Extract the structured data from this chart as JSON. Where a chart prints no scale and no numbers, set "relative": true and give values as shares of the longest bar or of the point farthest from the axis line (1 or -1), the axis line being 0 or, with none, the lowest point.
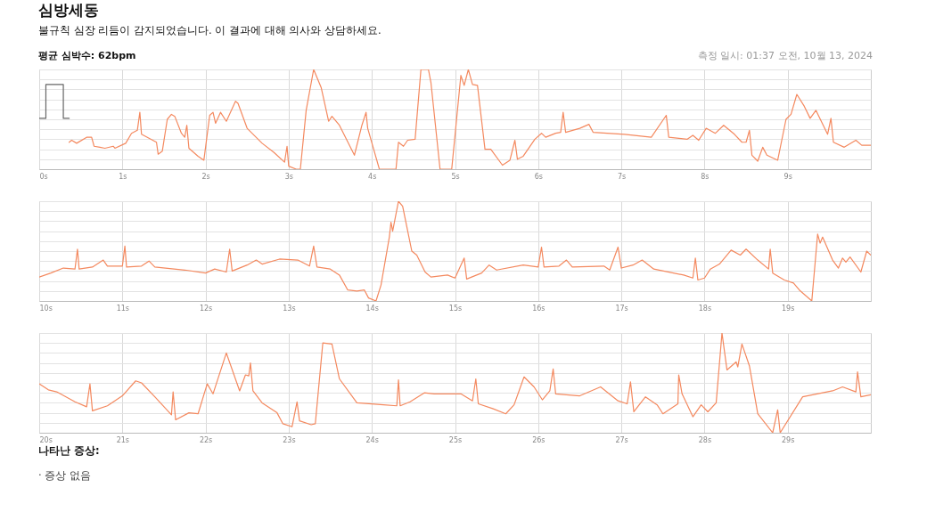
{
  "chart_data": [
    {
      "type": "line",
      "title": "심방세동",
      "subtitle": "불규칙 심장 리듬이 감지되었습니다. 이 결과에 대해 의사와 상담하세요.",
      "annotations": [
        "평균 심박수: 62bpm",
        "측정 일시: 01:37 오전, 10월 13, 2024"
      ],
      "relative": true,
      "grid": true,
      "xlim": [
        0,
        10
      ],
      "xticks": [
        {
          "value": 0,
          "label": "0s"
        },
        {
          "value": 1,
          "label": "1s"
        },
        {
          "value": 2,
          "label": "2s"
        },
        {
          "value": 3,
          "label": "3s"
        },
        {
          "value": 4,
          "label": "4s"
        },
        {
          "value": 5,
          "label": "5s"
        },
        {
          "value": 6,
          "label": "6s"
        },
        {
          "value": 7,
          "label": "7s"
        },
        {
          "value": 8,
          "label": "8s"
        },
        {
          "value": 9,
          "label": "9s"
        }
      ],
      "series": [
        {
          "color": "#666666",
          "x": [
            0,
            0.08,
            0.08,
            0.29,
            0.29,
            0.36
          ],
          "values": [
            0.51,
            0.51,
            0.85,
            0.85,
            0.51,
            0.51
          ]
        },
        {
          "color": "#f4895f",
          "x": [
            0.36,
            0.39,
            0.45,
            0.57,
            0.63,
            0.66,
            0.73,
            0.79,
            0.89,
            0.91,
            1.04,
            1.11,
            1.18,
            1.21,
            1.23,
            1.41,
            1.43,
            1.48,
            1.54,
            1.59,
            1.63,
            1.71,
            1.75,
            1.775,
            1.8,
            1.91,
            1.98,
            2.05,
            2.09,
            2.12,
            2.18,
            2.25,
            2.36,
            2.39,
            2.5,
            2.68,
            2.82,
            2.95,
            2.98,
            3.0,
            3.09,
            3.14,
            3.21,
            3.3,
            3.39,
            3.48,
            3.52,
            3.61,
            3.79,
            3.88,
            3.93,
            3.95,
            4.09,
            4.29,
            4.32,
            4.38,
            4.43,
            4.52,
            4.59,
            4.68,
            4.71,
            4.82,
            4.96,
            5.07,
            5.11,
            5.16,
            5.21,
            5.27,
            5.36,
            5.43,
            5.57,
            5.66,
            5.72,
            5.75,
            5.82,
            5.96,
            6.04,
            6.09,
            6.21,
            6.27,
            6.3,
            6.33,
            6.5,
            6.61,
            6.66,
            7.04,
            7.36,
            7.54,
            7.57,
            7.79,
            7.86,
            7.93,
            8.02,
            8.13,
            8.23,
            8.36,
            8.45,
            8.5,
            8.54,
            8.57,
            8.64,
            8.7,
            8.75,
            8.88,
            8.98,
            9.04,
            9.11,
            9.2,
            9.27,
            9.34,
            9.48,
            9.52,
            9.55,
            9.68,
            9.82,
            9.89,
            10.0
          ],
          "values": [
            0.27,
            0.29,
            0.26,
            0.32,
            0.32,
            0.23,
            0.22,
            0.21,
            0.23,
            0.21,
            0.26,
            0.36,
            0.39,
            0.57,
            0.35,
            0.27,
            0.15,
            0.18,
            0.5,
            0.55,
            0.53,
            0.36,
            0.32,
            0.44,
            0.21,
            0.13,
            0.09,
            0.54,
            0.57,
            0.46,
            0.57,
            0.48,
            0.68,
            0.66,
            0.41,
            0.26,
            0.17,
            0.07,
            0.23,
            0.03,
            0,
            0,
            0.59,
            1,
            0.82,
            0.48,
            0.53,
            0.44,
            0.14,
            0.44,
            0.57,
            0.41,
            0,
            0,
            0.27,
            0.23,
            0.29,
            0.3,
            1,
            1,
            0.87,
            0,
            0,
            0.94,
            0.84,
            1,
            0.85,
            0.84,
            0.2,
            0.2,
            0.04,
            0.09,
            0.29,
            0.1,
            0.13,
            0.3,
            0.36,
            0.32,
            0.36,
            0.37,
            0.57,
            0.37,
            0.41,
            0.45,
            0.37,
            0.35,
            0.32,
            0.54,
            0.32,
            0.3,
            0.34,
            0.29,
            0.41,
            0.36,
            0.44,
            0.35,
            0.27,
            0.27,
            0.39,
            0.14,
            0.08,
            0.22,
            0.14,
            0.09,
            0.5,
            0.55,
            0.75,
            0.63,
            0.51,
            0.59,
            0.35,
            0.51,
            0.27,
            0.22,
            0.29,
            0.24,
            0.24
          ]
        }
      ]
    },
    {
      "type": "line",
      "relative": true,
      "grid": true,
      "xlim": [
        10,
        20
      ],
      "xticks": [
        {
          "value": 10,
          "label": "10s"
        },
        {
          "value": 11,
          "label": "11s"
        },
        {
          "value": 12,
          "label": "12s"
        },
        {
          "value": 13,
          "label": "13s"
        },
        {
          "value": 14,
          "label": "14s"
        },
        {
          "value": 15,
          "label": "15s"
        },
        {
          "value": 16,
          "label": "16s"
        },
        {
          "value": 17,
          "label": "17s"
        },
        {
          "value": 18,
          "label": "18s"
        },
        {
          "value": 19,
          "label": "19s"
        }
      ],
      "series": [
        {
          "color": "#f4895f",
          "x": [
            10.0,
            10.14,
            10.29,
            10.43,
            10.46,
            10.48,
            10.64,
            10.77,
            10.82,
            11.0,
            11.03,
            11.05,
            11.23,
            11.32,
            11.39,
            11.75,
            12.0,
            12.11,
            12.25,
            12.29,
            12.32,
            12.5,
            12.61,
            12.68,
            12.89,
            13.11,
            13.25,
            13.3,
            13.34,
            13.5,
            13.61,
            13.71,
            13.82,
            13.91,
            13.96,
            14.05,
            14.11,
            14.21,
            14.23,
            14.25,
            14.32,
            14.37,
            14.48,
            14.54,
            14.64,
            14.71,
            14.91,
            15.0,
            15.11,
            15.14,
            15.32,
            15.41,
            15.5,
            15.82,
            16.0,
            16.04,
            16.07,
            16.25,
            16.34,
            16.41,
            16.79,
            16.86,
            16.96,
            17.0,
            17.14,
            17.25,
            17.39,
            17.75,
            17.86,
            17.89,
            17.92,
            18.0,
            18.07,
            18.18,
            18.32,
            18.43,
            18.5,
            18.64,
            18.77,
            18.79,
            18.82,
            18.96,
            19.07,
            19.14,
            19.29,
            19.36,
            19.39,
            19.42,
            19.54,
            19.61,
            19.66,
            19.7,
            19.75,
            19.88,
            19.95,
            20.0
          ],
          "values": [
            0.24,
            0.28,
            0.33,
            0.32,
            0.52,
            0.32,
            0.34,
            0.41,
            0.35,
            0.35,
            0.55,
            0.34,
            0.35,
            0.4,
            0.34,
            0.31,
            0.28,
            0.32,
            0.29,
            0.52,
            0.3,
            0.36,
            0.41,
            0.37,
            0.42,
            0.41,
            0.35,
            0.55,
            0.34,
            0.32,
            0.26,
            0.11,
            0.1,
            0.11,
            0.03,
            0,
            0.16,
            0.64,
            0.79,
            0.7,
            1,
            0.95,
            0.5,
            0.46,
            0.29,
            0.24,
            0.26,
            0.23,
            0.43,
            0.22,
            0.28,
            0.36,
            0.31,
            0.36,
            0.34,
            0.54,
            0.34,
            0.35,
            0.41,
            0.34,
            0.35,
            0.31,
            0.54,
            0.33,
            0.36,
            0.41,
            0.32,
            0.26,
            0.23,
            0.43,
            0.21,
            0.23,
            0.32,
            0.37,
            0.51,
            0.46,
            0.52,
            0.41,
            0.32,
            0.52,
            0.28,
            0.21,
            0.18,
            0.11,
            0,
            0.67,
            0.58,
            0.64,
            0.41,
            0.33,
            0.43,
            0.39,
            0.44,
            0.29,
            0.5,
            0.46
          ]
        }
      ]
    },
    {
      "type": "line",
      "annotations": [
        "나타난 증상:",
        "· 증상 없음"
      ],
      "relative": true,
      "grid": true,
      "xlim": [
        20,
        30
      ],
      "xticks": [
        {
          "value": 20,
          "label": "20s"
        },
        {
          "value": 21,
          "label": "21s"
        },
        {
          "value": 22,
          "label": "22s"
        },
        {
          "value": 23,
          "label": "23s"
        },
        {
          "value": 24,
          "label": "24s"
        },
        {
          "value": 25,
          "label": "25s"
        },
        {
          "value": 26,
          "label": "26s"
        },
        {
          "value": 27,
          "label": "27s"
        },
        {
          "value": 28,
          "label": "28s"
        },
        {
          "value": 29,
          "label": "29s"
        }
      ],
      "series": [
        {
          "color": "#f4895f",
          "x": [
            20.0,
            20.11,
            20.21,
            20.43,
            20.57,
            20.61,
            20.64,
            20.82,
            21.0,
            21.16,
            21.23,
            21.39,
            21.59,
            21.61,
            21.64,
            21.8,
            21.91,
            22.02,
            22.09,
            22.25,
            22.41,
            22.48,
            22.52,
            22.54,
            22.57,
            22.68,
            22.86,
            22.93,
            23.04,
            23.1,
            23.13,
            23.27,
            23.32,
            23.41,
            23.52,
            23.61,
            23.82,
            24.14,
            24.3,
            24.32,
            24.34,
            24.46,
            24.63,
            24.75,
            25.07,
            25.21,
            25.25,
            25.28,
            25.46,
            25.61,
            25.71,
            25.83,
            25.95,
            26.05,
            26.14,
            26.18,
            26.21,
            26.5,
            26.75,
            26.96,
            27.07,
            27.11,
            27.15,
            27.29,
            27.43,
            27.5,
            27.68,
            27.69,
            27.73,
            27.86,
            27.96,
            28.04,
            28.14,
            28.21,
            28.27,
            28.38,
            28.4,
            28.45,
            28.54,
            28.64,
            28.82,
            28.88,
            28.91,
            29.18,
            29.54,
            29.66,
            29.82,
            29.84,
            29.88,
            30.0
          ],
          "values": [
            0.49,
            0.43,
            0.41,
            0.31,
            0.26,
            0.49,
            0.22,
            0.27,
            0.37,
            0.52,
            0.5,
            0.36,
            0.18,
            0.41,
            0.13,
            0.2,
            0.19,
            0.49,
            0.39,
            0.8,
            0.42,
            0.58,
            0.57,
            0.7,
            0.42,
            0.3,
            0.2,
            0.09,
            0.06,
            0.31,
            0.12,
            0.08,
            0.09,
            0.9,
            0.89,
            0.54,
            0.3,
            0.28,
            0.27,
            0.53,
            0.27,
            0.31,
            0.4,
            0.39,
            0.39,
            0.32,
            0.54,
            0.29,
            0.24,
            0.19,
            0.28,
            0.56,
            0.46,
            0.33,
            0.42,
            0.64,
            0.39,
            0.37,
            0.46,
            0.32,
            0.29,
            0.51,
            0.21,
            0.36,
            0.28,
            0.19,
            0.29,
            0.58,
            0.39,
            0.16,
            0.28,
            0.21,
            0.3,
            1,
            0.63,
            0.71,
            0.66,
            0.89,
            0.67,
            0.19,
            0,
            0.23,
            0,
            0.36,
            0.42,
            0.46,
            0.41,
            0.61,
            0.36,
            0.38
          ]
        }
      ]
    }
  ]
}
